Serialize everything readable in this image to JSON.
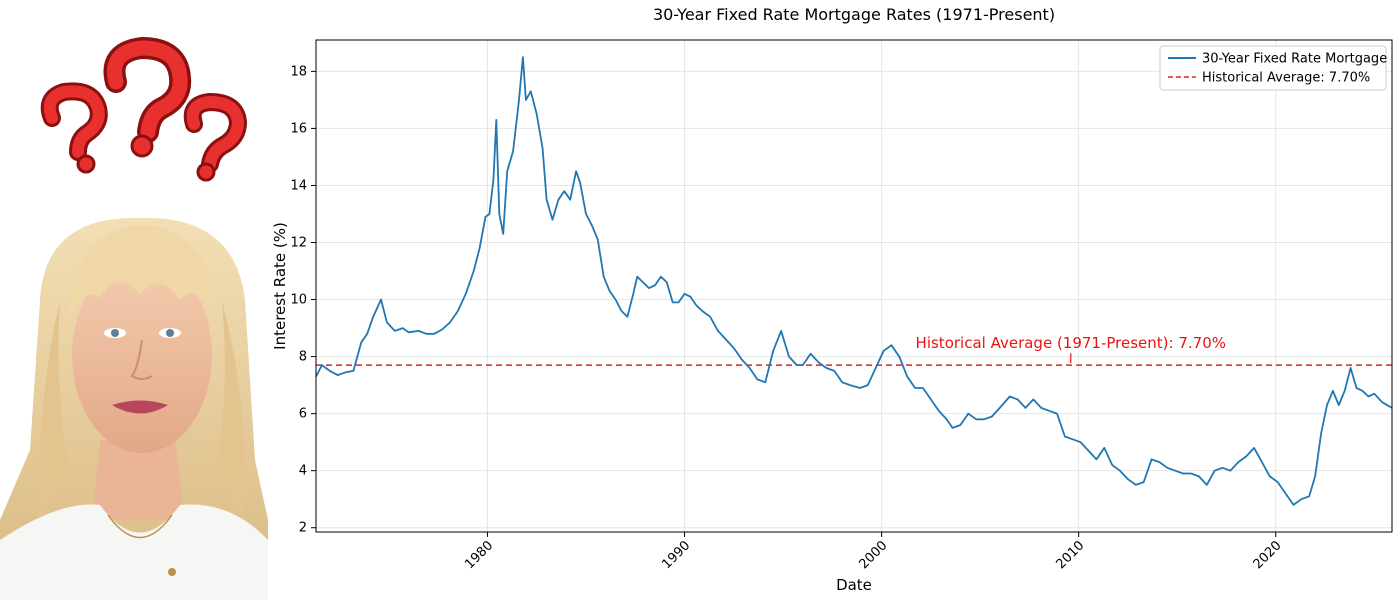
{
  "colors": {
    "series": "#1f77b4",
    "average": "#d62728",
    "annotation": "#ee1111",
    "grid": "#e6e6e6",
    "question_mark": "#e8312e",
    "hair": "#e8cf9a",
    "skin": "#efc0a0"
  },
  "photo": {
    "icon_name": "question-marks-icon",
    "avatar_name": "woman-portrait"
  },
  "chart_data": {
    "type": "line",
    "title": "30-Year Fixed Rate Mortgage Rates (1971-Present)",
    "xlabel": "Date",
    "ylabel": "Interest Rate (%)",
    "xlim": [
      1971.3,
      2025.9
    ],
    "ylim": [
      1.85,
      19.1
    ],
    "x_ticks": [
      1980,
      1990,
      2000,
      2010,
      2020
    ],
    "x_tick_labels": [
      "1980",
      "1990",
      "2000",
      "2010",
      "2020"
    ],
    "y_ticks": [
      2,
      4,
      6,
      8,
      10,
      12,
      14,
      16,
      18
    ],
    "y_tick_labels": [
      "2",
      "4",
      "6",
      "8",
      "10",
      "12",
      "14",
      "16",
      "18"
    ],
    "grid": true,
    "legend_position": "top-right",
    "legend": [
      {
        "label": "30-Year Fixed Rate Mortgage",
        "style": "solid"
      },
      {
        "label": "Historical Average: 7.70%",
        "style": "dashed"
      }
    ],
    "average_value": 7.7,
    "annotation": {
      "text": "Historical Average (1971-Present): 7.70%",
      "x": 2009.6,
      "y": 7.7
    },
    "series": [
      {
        "name": "30-Year Fixed Rate Mortgage",
        "x": [
          1971.3,
          1971.6,
          1972.0,
          1972.4,
          1972.8,
          1973.2,
          1973.6,
          1973.9,
          1974.2,
          1974.6,
          1974.9,
          1975.3,
          1975.7,
          1976.0,
          1976.5,
          1976.9,
          1977.3,
          1977.7,
          1978.1,
          1978.5,
          1978.9,
          1979.3,
          1979.6,
          1979.9,
          1980.1,
          1980.3,
          1980.45,
          1980.6,
          1980.8,
          1981.0,
          1981.3,
          1981.6,
          1981.8,
          1981.95,
          1982.2,
          1982.5,
          1982.8,
          1983.0,
          1983.3,
          1983.6,
          1983.9,
          1984.2,
          1984.5,
          1984.7,
          1985.0,
          1985.3,
          1985.6,
          1985.9,
          1986.2,
          1986.5,
          1986.8,
          1987.1,
          1987.4,
          1987.6,
          1987.9,
          1988.2,
          1988.5,
          1988.8,
          1989.1,
          1989.4,
          1989.7,
          1990.0,
          1990.3,
          1990.6,
          1990.9,
          1991.3,
          1991.7,
          1992.1,
          1992.5,
          1992.9,
          1993.3,
          1993.7,
          1994.1,
          1994.5,
          1994.9,
          1995.3,
          1995.7,
          1996.0,
          1996.4,
          1996.8,
          1997.2,
          1997.6,
          1998.0,
          1998.4,
          1998.9,
          1999.3,
          1999.7,
          2000.1,
          2000.5,
          2000.9,
          2001.3,
          2001.7,
          2002.1,
          2002.5,
          2002.9,
          2003.3,
          2003.6,
          2004.0,
          2004.4,
          2004.8,
          2005.2,
          2005.6,
          2006.0,
          2006.5,
          2006.9,
          2007.3,
          2007.7,
          2008.1,
          2008.5,
          2008.9,
          2009.3,
          2009.7,
          2010.1,
          2010.5,
          2010.9,
          2011.3,
          2011.7,
          2012.1,
          2012.5,
          2012.9,
          2013.3,
          2013.7,
          2014.1,
          2014.5,
          2014.9,
          2015.3,
          2015.7,
          2016.1,
          2016.5,
          2016.9,
          2017.3,
          2017.7,
          2018.1,
          2018.5,
          2018.9,
          2019.3,
          2019.7,
          2020.1,
          2020.5,
          2020.9,
          2021.3,
          2021.7,
          2022.0,
          2022.3,
          2022.6,
          2022.9,
          2023.2,
          2023.5,
          2023.8,
          2024.1,
          2024.4,
          2024.7,
          2025.0,
          2025.4,
          2025.9
        ],
        "values": [
          7.3,
          7.7,
          7.5,
          7.35,
          7.45,
          7.5,
          8.5,
          8.8,
          9.4,
          10.0,
          9.2,
          8.9,
          9.0,
          8.85,
          8.9,
          8.8,
          8.8,
          8.95,
          9.2,
          9.6,
          10.2,
          11.0,
          11.8,
          12.9,
          13.0,
          14.2,
          16.3,
          13.0,
          12.3,
          14.5,
          15.2,
          17.0,
          18.5,
          17.0,
          17.3,
          16.5,
          15.3,
          13.5,
          12.8,
          13.5,
          13.8,
          13.5,
          14.5,
          14.1,
          13.0,
          12.6,
          12.1,
          10.8,
          10.3,
          10.0,
          9.6,
          9.4,
          10.2,
          10.8,
          10.6,
          10.4,
          10.5,
          10.8,
          10.6,
          9.9,
          9.9,
          10.2,
          10.1,
          9.8,
          9.6,
          9.4,
          8.9,
          8.6,
          8.3,
          7.9,
          7.6,
          7.2,
          7.1,
          8.2,
          8.9,
          8.0,
          7.7,
          7.7,
          8.1,
          7.8,
          7.6,
          7.5,
          7.1,
          7.0,
          6.9,
          7.0,
          7.6,
          8.2,
          8.4,
          8.0,
          7.3,
          6.9,
          6.9,
          6.5,
          6.1,
          5.8,
          5.5,
          5.6,
          6.0,
          5.8,
          5.8,
          5.9,
          6.2,
          6.6,
          6.5,
          6.2,
          6.5,
          6.2,
          6.1,
          6.0,
          5.2,
          5.1,
          5.0,
          4.7,
          4.4,
          4.8,
          4.2,
          4.0,
          3.7,
          3.5,
          3.6,
          4.4,
          4.3,
          4.1,
          4.0,
          3.9,
          3.9,
          3.8,
          3.5,
          4.0,
          4.1,
          4.0,
          4.3,
          4.5,
          4.8,
          4.3,
          3.8,
          3.6,
          3.2,
          2.8,
          3.0,
          3.1,
          3.8,
          5.3,
          6.3,
          6.8,
          6.3,
          6.8,
          7.6,
          6.9,
          6.8,
          6.6,
          6.7,
          6.4,
          6.2
        ]
      }
    ]
  }
}
